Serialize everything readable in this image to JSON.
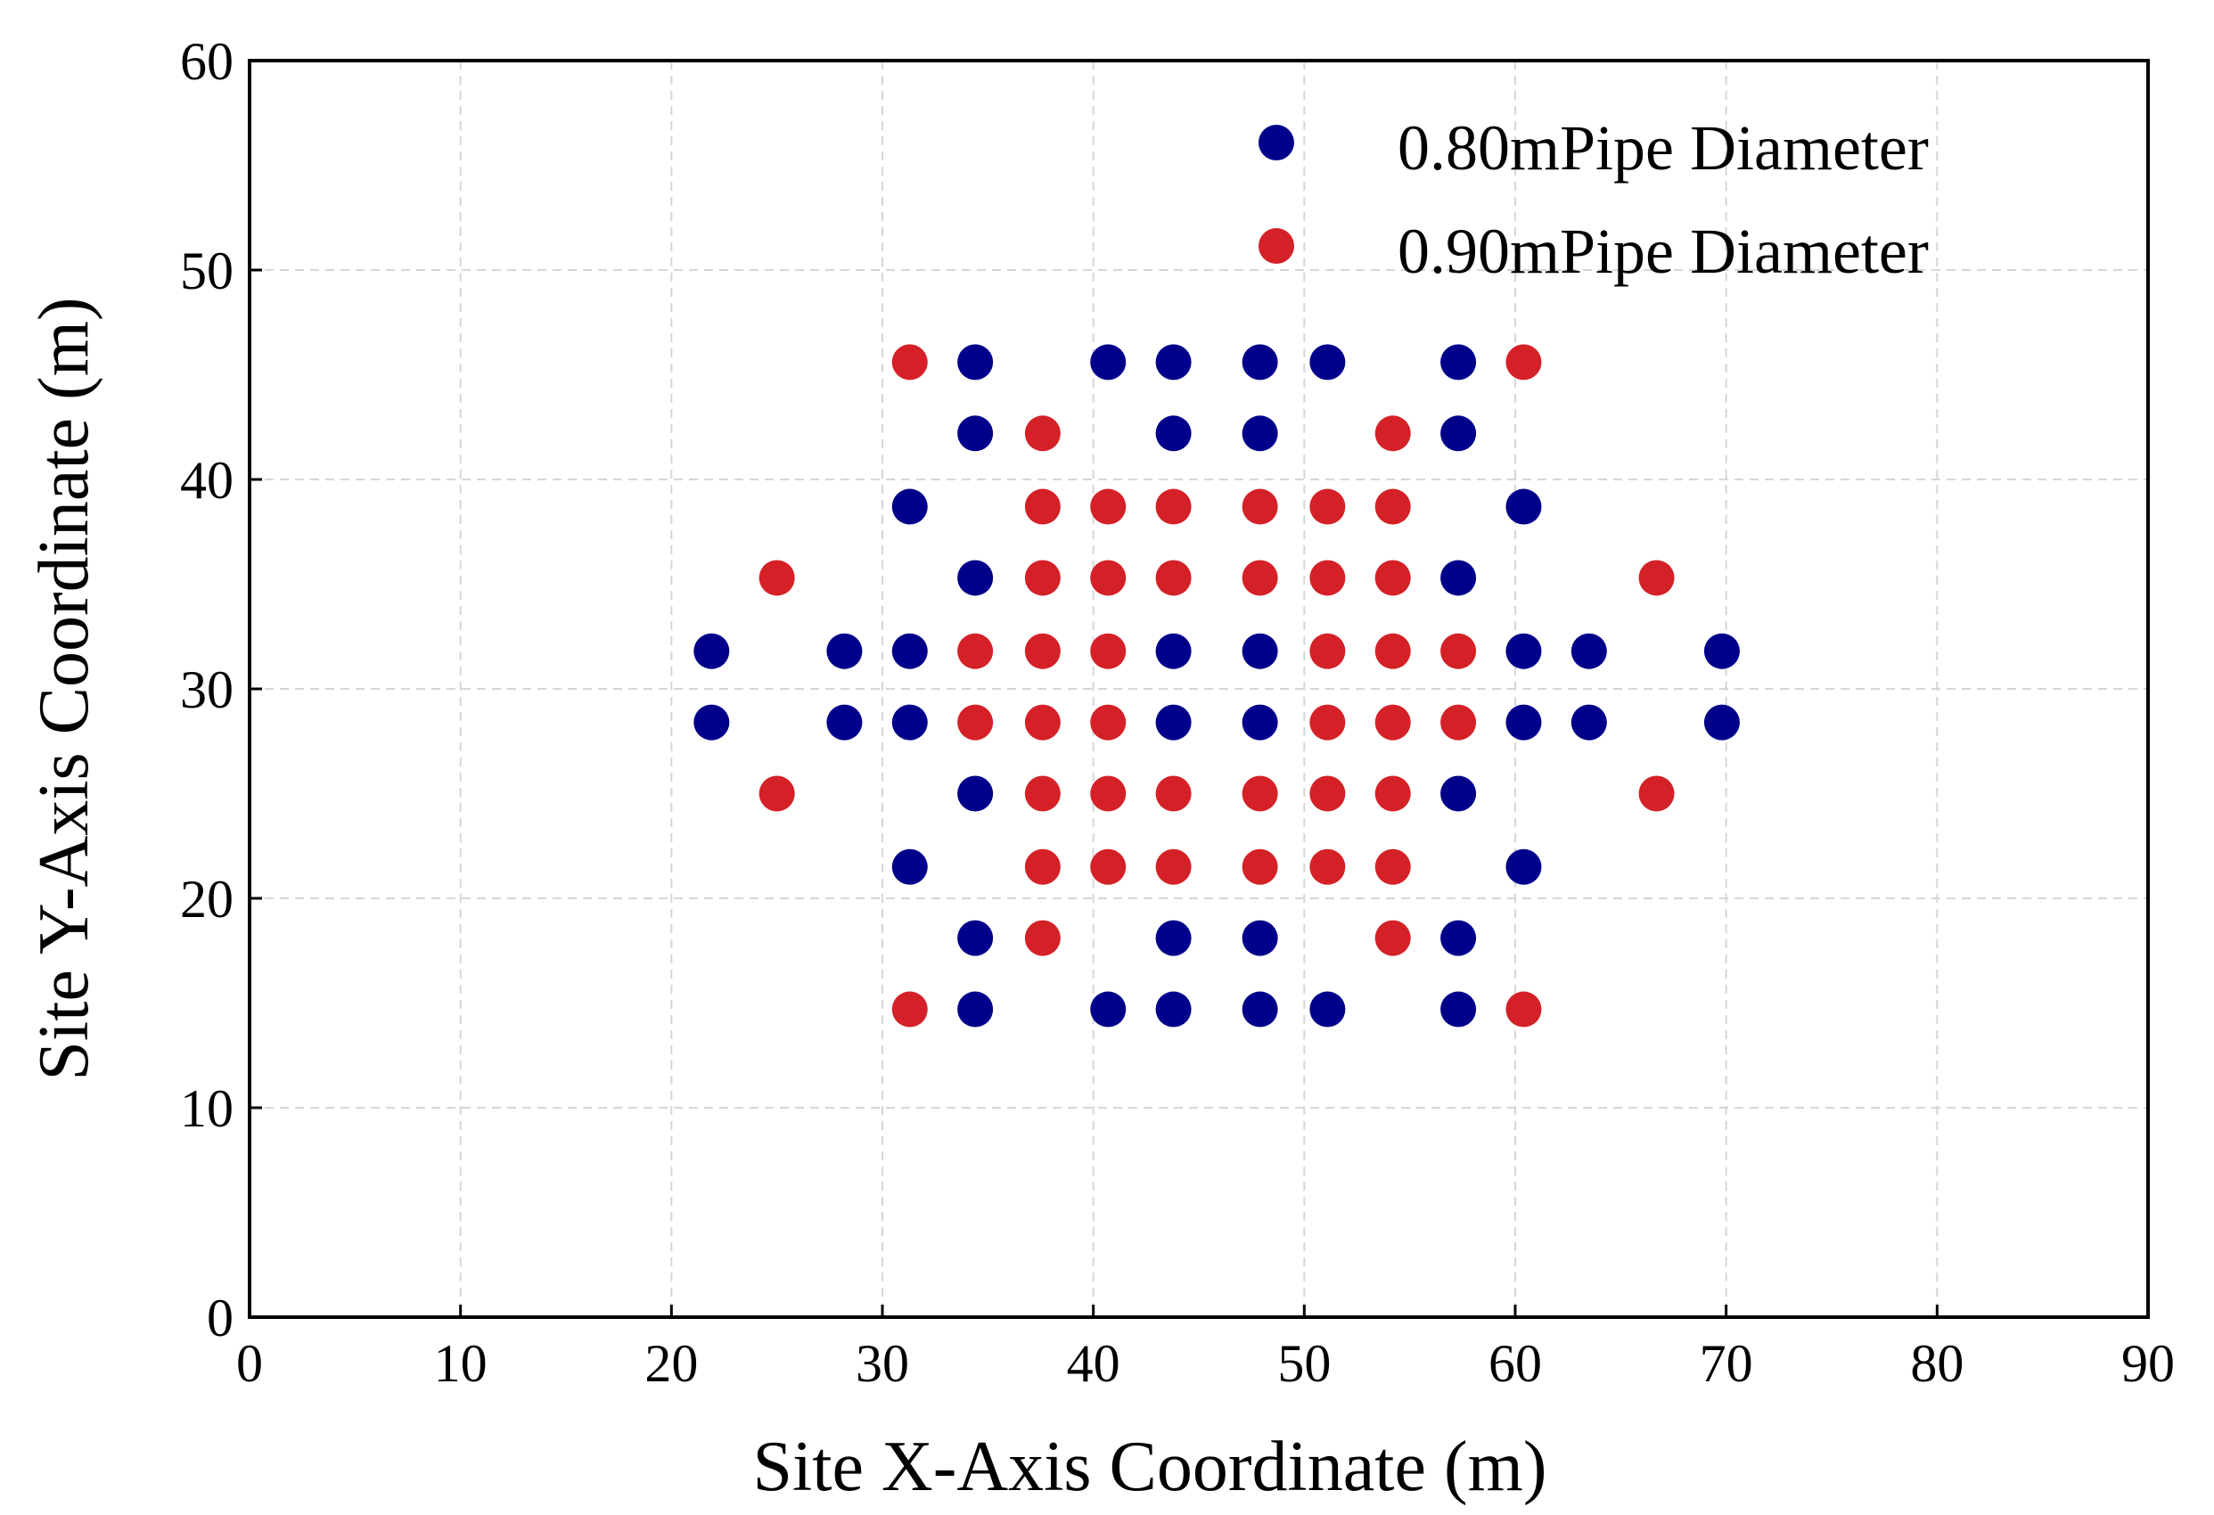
{
  "chart_data": {
    "type": "scatter",
    "title": "",
    "xlabel": "Site X-Axis Coordinate (m)",
    "ylabel": "Site Y-Axis Coordinate (m)",
    "xlim": [
      0,
      90
    ],
    "ylim": [
      0,
      60
    ],
    "xticks": [
      0,
      10,
      20,
      30,
      40,
      50,
      60,
      70,
      80,
      90
    ],
    "yticks": [
      0,
      10,
      20,
      30,
      40,
      50,
      60
    ],
    "grid": true,
    "legend_position": "top-right",
    "series": [
      {
        "name": "0.80mPipe Diameter",
        "color": "#00008b",
        "points": [
          [
            34.4,
            45.6
          ],
          [
            40.7,
            45.6
          ],
          [
            43.8,
            45.6
          ],
          [
            47.9,
            45.6
          ],
          [
            51.1,
            45.6
          ],
          [
            57.3,
            45.6
          ],
          [
            34.4,
            42.2
          ],
          [
            43.8,
            42.2
          ],
          [
            47.9,
            42.2
          ],
          [
            57.3,
            42.2
          ],
          [
            31.3,
            38.7
          ],
          [
            60.4,
            38.7
          ],
          [
            34.4,
            35.3
          ],
          [
            57.3,
            35.3
          ],
          [
            21.9,
            31.8
          ],
          [
            28.2,
            31.8
          ],
          [
            31.3,
            31.8
          ],
          [
            43.8,
            31.8
          ],
          [
            47.9,
            31.8
          ],
          [
            60.4,
            31.8
          ],
          [
            63.5,
            31.8
          ],
          [
            69.8,
            31.8
          ],
          [
            21.9,
            28.4
          ],
          [
            28.2,
            28.4
          ],
          [
            31.3,
            28.4
          ],
          [
            43.8,
            28.4
          ],
          [
            47.9,
            28.4
          ],
          [
            60.4,
            28.4
          ],
          [
            63.5,
            28.4
          ],
          [
            69.8,
            28.4
          ],
          [
            34.4,
            25.0
          ],
          [
            57.3,
            25.0
          ],
          [
            31.3,
            21.5
          ],
          [
            60.4,
            21.5
          ],
          [
            34.4,
            18.1
          ],
          [
            43.8,
            18.1
          ],
          [
            47.9,
            18.1
          ],
          [
            57.3,
            18.1
          ],
          [
            34.4,
            14.7
          ],
          [
            40.7,
            14.7
          ],
          [
            43.8,
            14.7
          ],
          [
            47.9,
            14.7
          ],
          [
            51.1,
            14.7
          ],
          [
            57.3,
            14.7
          ]
        ]
      },
      {
        "name": "0.90mPipe Diameter",
        "color": "#d42127",
        "points": [
          [
            31.3,
            45.6
          ],
          [
            60.4,
            45.6
          ],
          [
            37.6,
            42.2
          ],
          [
            54.2,
            42.2
          ],
          [
            37.6,
            38.7
          ],
          [
            40.7,
            38.7
          ],
          [
            43.8,
            38.7
          ],
          [
            47.9,
            38.7
          ],
          [
            51.1,
            38.7
          ],
          [
            54.2,
            38.7
          ],
          [
            25.0,
            35.3
          ],
          [
            37.6,
            35.3
          ],
          [
            40.7,
            35.3
          ],
          [
            43.8,
            35.3
          ],
          [
            47.9,
            35.3
          ],
          [
            51.1,
            35.3
          ],
          [
            54.2,
            35.3
          ],
          [
            66.7,
            35.3
          ],
          [
            34.4,
            31.8
          ],
          [
            37.6,
            31.8
          ],
          [
            40.7,
            31.8
          ],
          [
            51.1,
            31.8
          ],
          [
            54.2,
            31.8
          ],
          [
            57.3,
            31.8
          ],
          [
            34.4,
            28.4
          ],
          [
            37.6,
            28.4
          ],
          [
            40.7,
            28.4
          ],
          [
            51.1,
            28.4
          ],
          [
            54.2,
            28.4
          ],
          [
            57.3,
            28.4
          ],
          [
            25.0,
            25.0
          ],
          [
            37.6,
            25.0
          ],
          [
            40.7,
            25.0
          ],
          [
            43.8,
            25.0
          ],
          [
            47.9,
            25.0
          ],
          [
            51.1,
            25.0
          ],
          [
            54.2,
            25.0
          ],
          [
            66.7,
            25.0
          ],
          [
            37.6,
            21.5
          ],
          [
            40.7,
            21.5
          ],
          [
            43.8,
            21.5
          ],
          [
            47.9,
            21.5
          ],
          [
            51.1,
            21.5
          ],
          [
            54.2,
            21.5
          ],
          [
            37.6,
            18.1
          ],
          [
            54.2,
            18.1
          ],
          [
            31.3,
            14.7
          ],
          [
            60.4,
            14.7
          ]
        ]
      }
    ]
  }
}
